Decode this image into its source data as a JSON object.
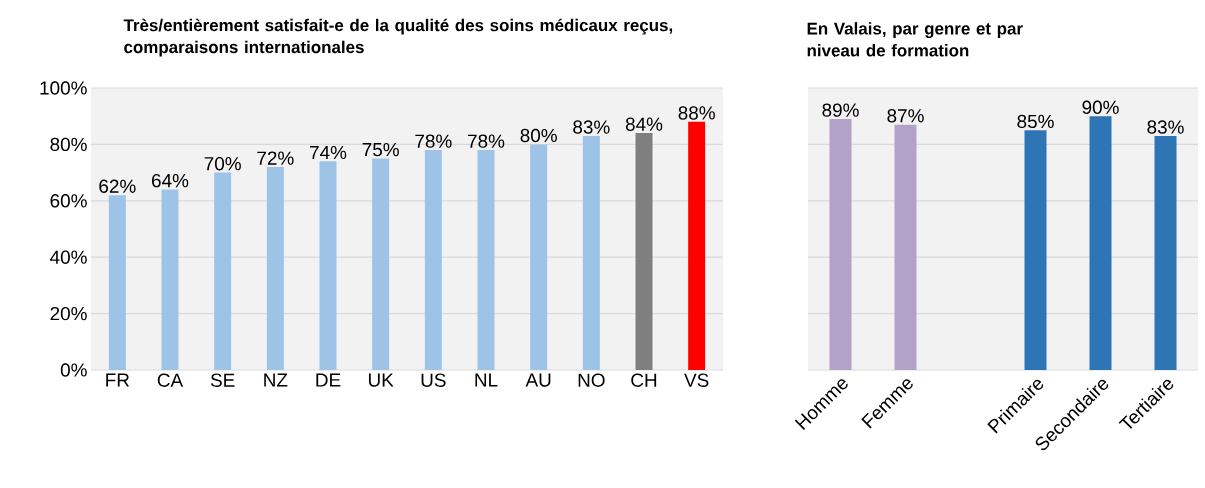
{
  "chart_data": [
    {
      "type": "bar",
      "title": "Très/entièrement satisfait-e de la qualité des soins médicaux reçus, comparaisons internationales",
      "categories": [
        "FR",
        "CA",
        "SE",
        "NZ",
        "DE",
        "UK",
        "US",
        "NL",
        "AU",
        "NO",
        "CH",
        "VS"
      ],
      "values": [
        62,
        64,
        70,
        72,
        74,
        75,
        78,
        78,
        80,
        83,
        84,
        88
      ],
      "colors": [
        "#9dc3e6",
        "#9dc3e6",
        "#9dc3e6",
        "#9dc3e6",
        "#9dc3e6",
        "#9dc3e6",
        "#9dc3e6",
        "#9dc3e6",
        "#9dc3e6",
        "#9dc3e6",
        "#7f7f7f",
        "#ff0000"
      ],
      "value_labels": [
        "62%",
        "64%",
        "70%",
        "72%",
        "74%",
        "75%",
        "78%",
        "78%",
        "80%",
        "83%",
        "84%",
        "88%"
      ],
      "ylim": [
        0,
        100
      ],
      "yticks": [
        {
          "value": 0,
          "label": "0%"
        },
        {
          "value": 20,
          "label": "20%"
        },
        {
          "value": 40,
          "label": "40%"
        },
        {
          "value": 60,
          "label": "60%"
        },
        {
          "value": 80,
          "label": "80%"
        },
        {
          "value": 100,
          "label": "100%"
        }
      ],
      "grid": "y"
    },
    {
      "type": "bar",
      "title": "En Valais, par genre et par niveau de formation",
      "categories": [
        "Homme",
        "Femme",
        null,
        "Primaire",
        "Secondaire",
        "Tertiaire"
      ],
      "values": [
        89,
        87,
        null,
        85,
        90,
        83
      ],
      "colors": [
        "#b2a2c7",
        "#b2a2c7",
        null,
        "#2e75b6",
        "#2e75b6",
        "#2e75b6"
      ],
      "value_labels": [
        "89%",
        "87%",
        null,
        "85%",
        "90%",
        "83%"
      ],
      "ylim": [
        0,
        100
      ],
      "yticks": [
        {
          "value": 0,
          "label": null
        },
        {
          "value": 20,
          "label": null
        },
        {
          "value": 40,
          "label": null
        },
        {
          "value": 60,
          "label": null
        },
        {
          "value": 80,
          "label": null
        },
        {
          "value": 100,
          "label": null
        }
      ],
      "grid": "y",
      "tick_labels": "x"
    }
  ]
}
